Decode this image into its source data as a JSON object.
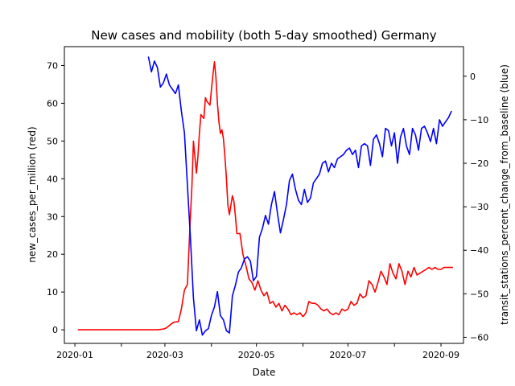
{
  "chart_data": {
    "type": "line",
    "title": "New cases and mobility (both 5-day smoothed) Germany",
    "xlabel": "Date",
    "ylabel_left": "new_cases_per_million (red)",
    "ylabel_right": "transit_stations_percent_change_from_baseline (blue)",
    "x_ticks": [
      "2020-01",
      "2020-03",
      "2020-05",
      "2020-07",
      "2020-09"
    ],
    "x_minor_ticks": [
      "2020-02",
      "2020-04",
      "2020-06",
      "2020-08"
    ],
    "y_left_ticks": [
      0,
      10,
      20,
      30,
      40,
      50,
      60,
      70
    ],
    "y_right_ticks": [
      0,
      -10,
      -20,
      -30,
      -40,
      -50,
      -60
    ],
    "xlim": [
      "2019-12-25",
      "2020-09-16"
    ],
    "ylim_left": [
      -3.6,
      75
    ],
    "ylim_right": [
      -61.4,
      6.8
    ],
    "grid": false,
    "series": [
      {
        "name": "new_cases_per_million",
        "axis": "left",
        "color": "#ff0000",
        "x": [
          "2020-01-03",
          "2020-01-15",
          "2020-02-01",
          "2020-02-15",
          "2020-02-25",
          "2020-02-29",
          "2020-03-02",
          "2020-03-05",
          "2020-03-07",
          "2020-03-10",
          "2020-03-12",
          "2020-03-14",
          "2020-03-16",
          "2020-03-18",
          "2020-03-19",
          "2020-03-20",
          "2020-03-22",
          "2020-03-23",
          "2020-03-24",
          "2020-03-25",
          "2020-03-27",
          "2020-03-28",
          "2020-03-29",
          "2020-03-30",
          "2020-03-31",
          "2020-04-01",
          "2020-04-02",
          "2020-04-03",
          "2020-04-04",
          "2020-04-05",
          "2020-04-06",
          "2020-04-07",
          "2020-04-08",
          "2020-04-09",
          "2020-04-10",
          "2020-04-11",
          "2020-04-12",
          "2020-04-13",
          "2020-04-15",
          "2020-04-16",
          "2020-04-17",
          "2020-04-18",
          "2020-04-20",
          "2020-04-22",
          "2020-04-24",
          "2020-04-26",
          "2020-04-28",
          "2020-04-30",
          "2020-05-02",
          "2020-05-04",
          "2020-05-06",
          "2020-05-08",
          "2020-05-10",
          "2020-05-12",
          "2020-05-14",
          "2020-05-16",
          "2020-05-18",
          "2020-05-20",
          "2020-05-22",
          "2020-05-24",
          "2020-05-26",
          "2020-05-28",
          "2020-05-30",
          "2020-06-01",
          "2020-06-03",
          "2020-06-05",
          "2020-06-07",
          "2020-06-09",
          "2020-06-11",
          "2020-06-13",
          "2020-06-15",
          "2020-06-17",
          "2020-06-19",
          "2020-06-21",
          "2020-06-23",
          "2020-06-25",
          "2020-06-27",
          "2020-06-29",
          "2020-07-01",
          "2020-07-03",
          "2020-07-05",
          "2020-07-07",
          "2020-07-09",
          "2020-07-11",
          "2020-07-13",
          "2020-07-15",
          "2020-07-17",
          "2020-07-19",
          "2020-07-21",
          "2020-07-23",
          "2020-07-25",
          "2020-07-27",
          "2020-07-29",
          "2020-07-31",
          "2020-08-02",
          "2020-08-04",
          "2020-08-06",
          "2020-08-08",
          "2020-08-10",
          "2020-08-12",
          "2020-08-14",
          "2020-08-16",
          "2020-08-18",
          "2020-08-20",
          "2020-08-22",
          "2020-08-24",
          "2020-08-26",
          "2020-08-28",
          "2020-08-30",
          "2020-09-01",
          "2020-09-03",
          "2020-09-05",
          "2020-09-07",
          "2020-09-09"
        ],
        "values": [
          0,
          0,
          0,
          0,
          0,
          0.2,
          0.5,
          1.5,
          2.0,
          2.2,
          5.5,
          10.5,
          12.0,
          30.0,
          38.0,
          50.0,
          41.5,
          46.0,
          52.0,
          57.0,
          56.0,
          61.5,
          60.5,
          60.0,
          59.5,
          63.5,
          67.5,
          71.0,
          67.0,
          60.0,
          55.0,
          52.0,
          53.0,
          50.5,
          46.0,
          40.0,
          33.0,
          30.5,
          35.5,
          34.0,
          30.0,
          25.5,
          25.5,
          20.0,
          17.0,
          13.5,
          12.5,
          10.5,
          13.0,
          10.5,
          9.0,
          10.0,
          7.0,
          7.5,
          6.0,
          7.0,
          5.0,
          6.5,
          5.5,
          4.0,
          4.5,
          4.0,
          4.5,
          3.5,
          4.5,
          7.5,
          7.0,
          7.0,
          6.5,
          5.5,
          5.0,
          5.5,
          4.5,
          4.0,
          4.5,
          4.0,
          5.5,
          5.0,
          5.5,
          7.5,
          6.5,
          7.0,
          9.5,
          8.5,
          9.0,
          13.0,
          12.0,
          10.0,
          12.5,
          15.5,
          14.0,
          12.0,
          17.5,
          15.0,
          13.5,
          17.5,
          15.5,
          12.0,
          15.5,
          14.0,
          16.5,
          14.5,
          15.0,
          15.5,
          16.0,
          16.5,
          16.0,
          16.5,
          16.0,
          16.0,
          16.5,
          16.5,
          16.5,
          16.5
        ]
      },
      {
        "name": "transit_stations_percent_change_from_baseline",
        "axis": "right",
        "color": "#0000ff",
        "x": [
          "2020-02-19",
          "2020-02-21",
          "2020-02-23",
          "2020-02-25",
          "2020-02-27",
          "2020-02-29",
          "2020-03-02",
          "2020-03-04",
          "2020-03-06",
          "2020-03-08",
          "2020-03-10",
          "2020-03-12",
          "2020-03-14",
          "2020-03-16",
          "2020-03-18",
          "2020-03-20",
          "2020-03-22",
          "2020-03-24",
          "2020-03-26",
          "2020-03-28",
          "2020-03-30",
          "2020-04-01",
          "2020-04-03",
          "2020-04-05",
          "2020-04-07",
          "2020-04-09",
          "2020-04-11",
          "2020-04-13",
          "2020-04-15",
          "2020-04-17",
          "2020-04-19",
          "2020-04-21",
          "2020-04-23",
          "2020-04-25",
          "2020-04-27",
          "2020-04-29",
          "2020-05-01",
          "2020-05-03",
          "2020-05-05",
          "2020-05-07",
          "2020-05-09",
          "2020-05-11",
          "2020-05-13",
          "2020-05-15",
          "2020-05-17",
          "2020-05-19",
          "2020-05-21",
          "2020-05-23",
          "2020-05-25",
          "2020-05-27",
          "2020-05-29",
          "2020-05-31",
          "2020-06-02",
          "2020-06-04",
          "2020-06-06",
          "2020-06-08",
          "2020-06-10",
          "2020-06-12",
          "2020-06-14",
          "2020-06-16",
          "2020-06-18",
          "2020-06-20",
          "2020-06-22",
          "2020-06-24",
          "2020-06-26",
          "2020-06-28",
          "2020-06-30",
          "2020-07-02",
          "2020-07-04",
          "2020-07-06",
          "2020-07-08",
          "2020-07-10",
          "2020-07-12",
          "2020-07-14",
          "2020-07-16",
          "2020-07-18",
          "2020-07-20",
          "2020-07-22",
          "2020-07-24",
          "2020-07-26",
          "2020-07-28",
          "2020-07-30",
          "2020-08-01",
          "2020-08-03",
          "2020-08-05",
          "2020-08-07",
          "2020-08-09",
          "2020-08-11",
          "2020-08-13",
          "2020-08-15",
          "2020-08-17",
          "2020-08-19",
          "2020-08-21",
          "2020-08-23",
          "2020-08-25",
          "2020-08-27",
          "2020-08-29",
          "2020-08-31",
          "2020-09-02",
          "2020-09-04",
          "2020-09-06",
          "2020-09-08"
        ],
        "values": [
          4.5,
          1.0,
          3.5,
          2.0,
          -2.5,
          -1.5,
          0.5,
          -2.0,
          -3.0,
          -4.0,
          -2.0,
          -8.0,
          -13.0,
          -25.0,
          -37.0,
          -51.0,
          -58.5,
          -56.0,
          -59.5,
          -58.5,
          -58.0,
          -55.0,
          -53.0,
          -49.5,
          -55.0,
          -56.0,
          -58.5,
          -59.0,
          -50.5,
          -48.0,
          -45.0,
          -44.0,
          -42.0,
          -41.5,
          -42.5,
          -47.0,
          -46.0,
          -37.0,
          -35.0,
          -32.0,
          -34.0,
          -29.5,
          -26.5,
          -31.5,
          -36.0,
          -33.0,
          -29.5,
          -24.0,
          -22.5,
          -26.0,
          -28.5,
          -29.5,
          -26.0,
          -29.0,
          -28.0,
          -24.5,
          -23.5,
          -22.5,
          -20.0,
          -19.5,
          -22.0,
          -20.0,
          -21.0,
          -19.0,
          -18.5,
          -18.0,
          -17.0,
          -16.5,
          -18.0,
          -17.0,
          -21.0,
          -16.0,
          -15.5,
          -16.0,
          -20.5,
          -14.5,
          -13.5,
          -15.5,
          -18.5,
          -12.0,
          -12.5,
          -16.0,
          -13.0,
          -20.0,
          -14.0,
          -12.0,
          -16.0,
          -18.0,
          -12.0,
          -13.5,
          -17.0,
          -12.0,
          -11.5,
          -13.0,
          -15.0,
          -12.0,
          -15.5,
          -10.0,
          -11.5,
          -10.5,
          -9.5,
          -8.0
        ]
      }
    ]
  }
}
